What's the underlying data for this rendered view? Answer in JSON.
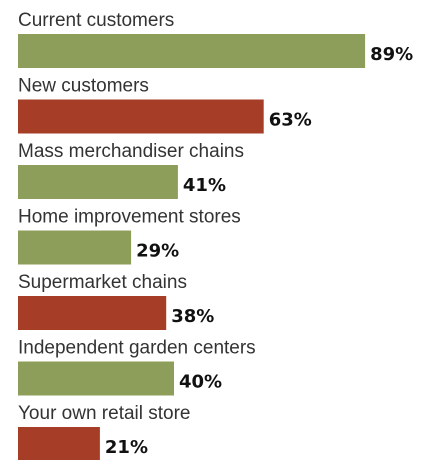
{
  "chart_data": {
    "type": "bar",
    "orientation": "horizontal",
    "categories": [
      "Current customers",
      "New customers",
      "Mass merchandiser chains",
      "Home improvement stores",
      "Supermarket chains",
      "Independent garden centers",
      "Your own retail store"
    ],
    "values": [
      89,
      63,
      41,
      29,
      38,
      40,
      21
    ],
    "value_labels": [
      "89%",
      "63%",
      "41%",
      "29%",
      "38%",
      "40%",
      "21%"
    ],
    "bar_colors": [
      "#8c9e5a",
      "#a63e27",
      "#8c9e5a",
      "#8c9e5a",
      "#a63e27",
      "#8c9e5a",
      "#a63e27"
    ],
    "unit": "%",
    "xlim": [
      0,
      100
    ],
    "grid": false,
    "legend": "none"
  }
}
